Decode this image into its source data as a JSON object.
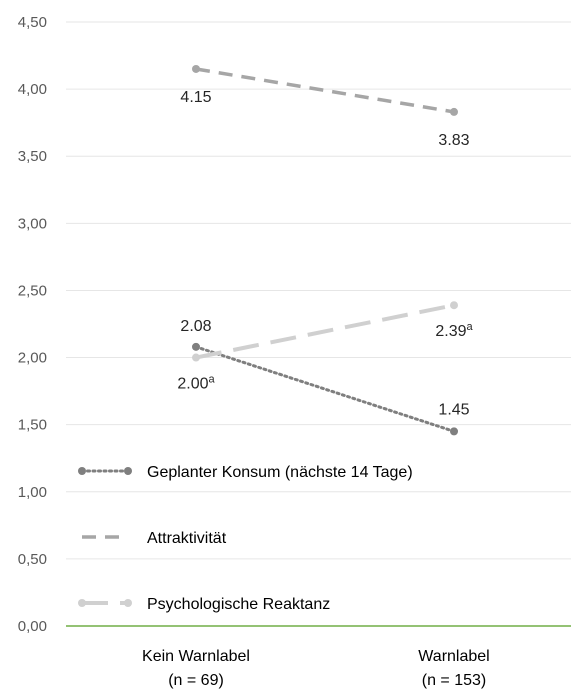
{
  "chart_data": {
    "type": "line",
    "categories": [
      "Kein Warnlabel|(n = 69)",
      "Warnlabel|(n = 153)"
    ],
    "ylim": [
      0,
      4.5
    ],
    "yticks": [
      "0,00",
      "0,50",
      "1,00",
      "1,50",
      "2,00",
      "2,50",
      "3,00",
      "3,50",
      "4,00",
      "4,50"
    ],
    "grid": true,
    "legend_position": "bottom-left",
    "series": [
      {
        "name": "Geplanter Konsum (nächste 14 Tage)",
        "values": [
          2.08,
          1.45
        ],
        "labels": [
          "2.08",
          "1.45"
        ],
        "label_sup": [
          "",
          ""
        ],
        "color": "#7f7f7f",
        "dash": "dotted"
      },
      {
        "name": "Attraktivität",
        "values": [
          4.15,
          3.83
        ],
        "labels": [
          "4.15",
          "3.83"
        ],
        "label_sup": [
          "",
          ""
        ],
        "color": "#a6a6a6",
        "dash": "dashed"
      },
      {
        "name": "Psychologische Reaktanz",
        "values": [
          2.0,
          2.39
        ],
        "labels": [
          "2.00",
          "2.39"
        ],
        "label_sup": [
          "a",
          "a"
        ],
        "color": "#d0d0d0",
        "dash": "longdash"
      }
    ],
    "axis_color": "#70ad47",
    "grid_color": "#e6e6e6"
  }
}
